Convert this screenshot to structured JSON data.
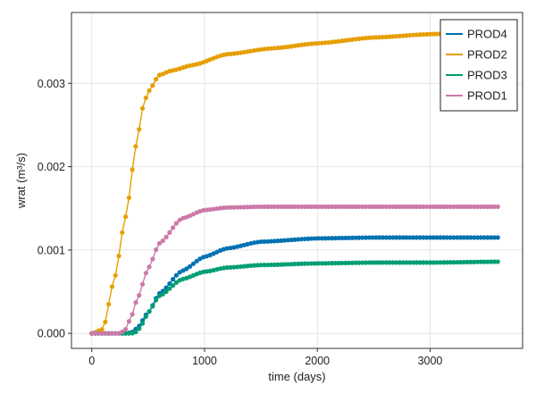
{
  "chart_data": {
    "type": "line",
    "title": "",
    "xlabel": "time (days)",
    "ylabel": "wrat (m³/s)",
    "xlim": [
      -180,
      3820
    ],
    "ylim": [
      -0.00018,
      0.00385
    ],
    "xticks": [
      0,
      1000,
      2000,
      3000
    ],
    "xtick_labels": [
      "0",
      "1000",
      "2000",
      "3000"
    ],
    "yticks": [
      0.0,
      0.001,
      0.002,
      0.003
    ],
    "ytick_labels": [
      "0.000",
      "0.001",
      "0.002",
      "0.003"
    ],
    "grid": true,
    "legend_position": "top-right",
    "markers": true,
    "series": [
      {
        "name": "PROD4",
        "color": "#0072b2",
        "x": [
          0,
          300,
          350,
          400,
          500,
          600,
          800,
          1000,
          1200,
          1500,
          2000,
          2500,
          3000,
          3600
        ],
        "values": [
          0,
          0,
          1e-05,
          6e-05,
          0.00025,
          0.00048,
          0.00075,
          0.00092,
          0.00102,
          0.0011,
          0.00114,
          0.00115,
          0.00115,
          0.00115
        ]
      },
      {
        "name": "PROD2",
        "color": "#e69f00",
        "x": [
          0,
          100,
          200,
          300,
          400,
          450,
          500,
          600,
          700,
          900,
          1200,
          1600,
          2000,
          2500,
          3000,
          3600
        ],
        "values": [
          0,
          5e-05,
          0.00065,
          0.0014,
          0.0023,
          0.0027,
          0.0029,
          0.0031,
          0.00315,
          0.00322,
          0.00335,
          0.00342,
          0.00348,
          0.00355,
          0.00359,
          0.00363
        ]
      },
      {
        "name": "PROD3",
        "color": "#009e73",
        "x": [
          0,
          350,
          400,
          450,
          500,
          600,
          800,
          1000,
          1200,
          1500,
          2000,
          2500,
          3000,
          3600
        ],
        "values": [
          0,
          0,
          2e-05,
          0.00012,
          0.00025,
          0.00045,
          0.00065,
          0.00074,
          0.00079,
          0.00082,
          0.00084,
          0.00085,
          0.00085,
          0.00086
        ]
      },
      {
        "name": "PROD1",
        "color": "#cc79a7",
        "x": [
          0,
          250,
          300,
          350,
          400,
          500,
          600,
          800,
          1000,
          1200,
          1500,
          2000,
          2500,
          3000,
          3600
        ],
        "values": [
          0,
          0,
          5e-05,
          0.0002,
          0.0004,
          0.00078,
          0.00108,
          0.00138,
          0.00148,
          0.00151,
          0.00152,
          0.00152,
          0.00152,
          0.00152,
          0.00152
        ]
      }
    ]
  }
}
